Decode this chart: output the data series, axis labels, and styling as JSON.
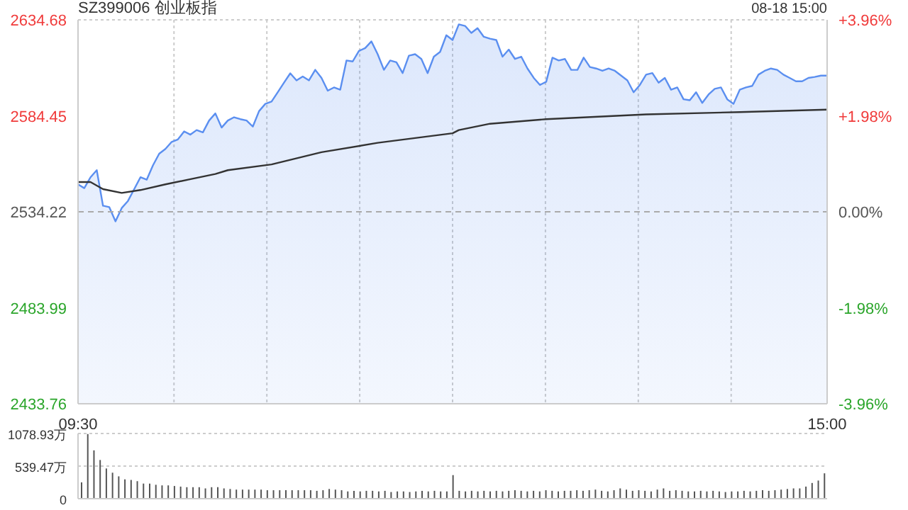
{
  "chart_data": [
    {
      "type": "area",
      "title": "SZ399006 创业板指",
      "annotations": [
        "08-18 15:00"
      ],
      "categories": [
        "09:30",
        null,
        null,
        null,
        null,
        null,
        null,
        null,
        null,
        null,
        null,
        null,
        null,
        null,
        null,
        null,
        null,
        null,
        null,
        null,
        null,
        null,
        null,
        null,
        null,
        null,
        null,
        null,
        null,
        null,
        null,
        null,
        null,
        null,
        null,
        null,
        null,
        null,
        null,
        null,
        null,
        null,
        null,
        null,
        null,
        null,
        null,
        null,
        null,
        null,
        null,
        null,
        null,
        null,
        null,
        null,
        null,
        null,
        null,
        null,
        null,
        null,
        null,
        null,
        null,
        null,
        null,
        null,
        null,
        null,
        null,
        null,
        null,
        null,
        null,
        null,
        null,
        null,
        null,
        null,
        null,
        null,
        null,
        null,
        null,
        null,
        null,
        null,
        null,
        null,
        null,
        null,
        null,
        null,
        null,
        null,
        null,
        null,
        null,
        null,
        null,
        null,
        null,
        null,
        null,
        null,
        null,
        null,
        null,
        null,
        null,
        null,
        null,
        null,
        null,
        null,
        null,
        null,
        null,
        null,
        "15:00"
      ],
      "ylim": [
        2433.76,
        2634.68
      ],
      "yticks": [
        2433.76,
        2483.99,
        2534.22,
        2584.45,
        2634.68
      ],
      "y2lim": [
        -3.96,
        3.96
      ],
      "y2ticks": [
        {
          "value": -3.96,
          "label": "-3.96%"
        },
        {
          "value": -1.98,
          "label": "-1.98%"
        },
        {
          "value": 0,
          "label": "0.00%"
        },
        {
          "value": 1.98,
          "label": "+1.98%"
        },
        {
          "value": 3.96,
          "label": "+3.96%"
        }
      ],
      "grid": true,
      "ref_lines": [
        {
          "axis": "y",
          "value": 2534.22,
          "line_style": "dashed",
          "color": "#aaaaaa"
        }
      ],
      "series": [
        {
          "type": "area",
          "color": "#5b8ff0",
          "values": [
            2548.6,
            2546.6,
            2552.3,
            2556,
            2537.4,
            2536.7,
            2529.2,
            2536.2,
            2539.9,
            2546.1,
            2552.3,
            2551,
            2558.5,
            2564.6,
            2567.1,
            2570.8,
            2572.1,
            2576.3,
            2574.6,
            2577,
            2575.8,
            2582,
            2585.7,
            2578.3,
            2582,
            2583.7,
            2582.7,
            2582,
            2578.8,
            2586.9,
            2590.7,
            2591.9,
            2596.8,
            2601.8,
            2606.7,
            2603,
            2605,
            2603,
            2608.5,
            2604.3,
            2597.6,
            2599.3,
            2598.1,
            2613.4,
            2612.9,
            2618.4,
            2619.9,
            2623.4,
            2616.7,
            2608.5,
            2613.4,
            2612.5,
            2606.8,
            2615.9,
            2616.7,
            2614.2,
            2606.8,
            2615.4,
            2617.9,
            2626.6,
            2624.1,
            2632.3,
            2631.5,
            2627.8,
            2630.3,
            2625.8,
            2624.8,
            2624.1,
            2615.4,
            2619.1,
            2614.2,
            2615.4,
            2609.2,
            2604.3,
            2600.6,
            2602.3,
            2614.9,
            2613.4,
            2614.2,
            2608.5,
            2608.5,
            2614.9,
            2610,
            2609.2,
            2608,
            2609.2,
            2608,
            2605.5,
            2603,
            2596.8,
            2600.6,
            2606,
            2606.8,
            2601.8,
            2604.3,
            2598.1,
            2599.3,
            2593.1,
            2592.6,
            2596.8,
            2591.2,
            2595.6,
            2598.6,
            2599.3,
            2593.1,
            2590.7,
            2598.1,
            2599.3,
            2600.1,
            2606,
            2608,
            2609.2,
            2608.5,
            2606,
            2604.3,
            2602.5,
            2602.5,
            2604.3,
            2604.8,
            2605.5,
            2605.5
          ]
        },
        {
          "type": "line",
          "color": "#333333",
          "values": [
            2549.8,
            null,
            2549.8,
            null,
            2546.1,
            null,
            null,
            2544.1,
            null,
            null,
            2545.6,
            null,
            null,
            null,
            2548.6,
            null,
            null,
            null,
            null,
            null,
            null,
            null,
            2554,
            null,
            2556,
            null,
            null,
            null,
            null,
            null,
            null,
            2559,
            null,
            null,
            null,
            null,
            null,
            null,
            null,
            2565.4,
            null,
            null,
            null,
            null,
            null,
            null,
            null,
            null,
            2570.3,
            null,
            null,
            null,
            null,
            null,
            null,
            null,
            null,
            null,
            null,
            null,
            2575.3,
            2577,
            null,
            null,
            null,
            null,
            2580.3,
            null,
            null,
            null,
            null,
            null,
            null,
            null,
            null,
            2582.7,
            null,
            null,
            null,
            null,
            null,
            null,
            null,
            null,
            null,
            null,
            null,
            null,
            null,
            null,
            null,
            2585.2,
            null,
            null,
            null,
            null,
            null,
            null,
            null,
            null,
            null,
            null,
            null,
            null,
            null,
            null,
            2586.4,
            null,
            null,
            null,
            null,
            null,
            null,
            null,
            null,
            null,
            null,
            null,
            null,
            null,
            2587.7
          ]
        }
      ]
    },
    {
      "type": "bar",
      "color": "#555555",
      "categories": [
        null,
        null,
        null,
        null,
        null,
        null,
        null,
        null,
        null,
        null,
        null,
        null,
        null,
        null,
        null,
        null,
        null,
        null,
        null,
        null,
        null,
        null,
        null,
        null,
        null,
        null,
        null,
        null,
        null,
        null,
        null,
        null,
        null,
        null,
        null,
        null,
        null,
        null,
        null,
        null,
        null,
        null,
        null,
        null,
        null,
        null,
        null,
        null,
        null,
        null,
        null,
        null,
        null,
        null,
        null,
        null,
        null,
        null,
        null,
        null,
        null,
        null,
        null,
        null,
        null,
        null,
        null,
        null,
        null,
        null,
        null,
        null,
        null,
        null,
        null,
        null,
        null,
        null,
        null,
        null,
        null,
        null,
        null,
        null,
        null,
        null,
        null,
        null,
        null,
        null,
        null,
        null,
        null,
        null,
        null,
        null,
        null,
        null,
        null,
        null,
        null,
        null,
        null,
        null,
        null,
        null,
        null,
        null,
        null,
        null,
        null,
        null,
        null,
        null,
        null,
        null,
        null,
        null,
        null,
        null,
        null
      ],
      "ylim": [
        0,
        1078.93
      ],
      "yticks": [
        0,
        {
          "value": 539.47,
          "label": "539.47万"
        },
        {
          "value": 1078.93,
          "label": "1078.93万"
        }
      ],
      "grid": "y",
      "values": [
        270,
        1070,
        800,
        640,
        500,
        430,
        370,
        320,
        310,
        290,
        250,
        250,
        230,
        220,
        220,
        210,
        200,
        190,
        190,
        190,
        170,
        190,
        190,
        170,
        160,
        150,
        150,
        150,
        150,
        150,
        140,
        140,
        140,
        140,
        140,
        140,
        140,
        140,
        130,
        140,
        160,
        150,
        140,
        120,
        130,
        120,
        130,
        130,
        120,
        130,
        110,
        120,
        120,
        110,
        120,
        130,
        120,
        130,
        120,
        120,
        390,
        130,
        120,
        130,
        120,
        130,
        120,
        130,
        120,
        130,
        140,
        130,
        120,
        130,
        120,
        140,
        130,
        120,
        130,
        130,
        140,
        130,
        140,
        150,
        130,
        120,
        140,
        170,
        150,
        130,
        140,
        130,
        120,
        150,
        170,
        130,
        140,
        130,
        120,
        120,
        130,
        120,
        130,
        120,
        110,
        120,
        120,
        130,
        120,
        130,
        140,
        130,
        140,
        150,
        160,
        170,
        170,
        200,
        260,
        300,
        420
      ]
    }
  ]
}
